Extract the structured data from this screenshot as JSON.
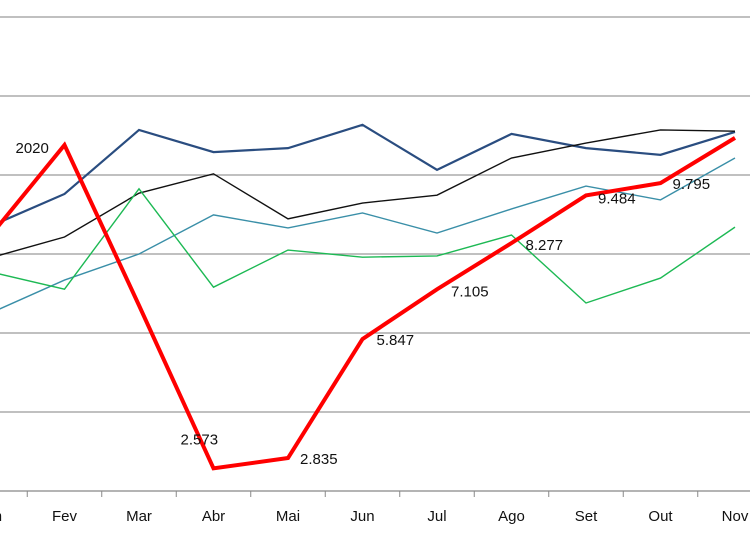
{
  "chart_data": {
    "type": "line",
    "categories": [
      "Jan",
      "Fev",
      "Mar",
      "Abr",
      "Mai",
      "Jun",
      "Jul",
      "Ago",
      "Set",
      "Out",
      "Nov"
    ],
    "ylim": [
      2,
      14
    ],
    "yticks": [
      2,
      4,
      6,
      8,
      10,
      12,
      14
    ],
    "grid": true,
    "series": [
      {
        "name": "series-dark-blue",
        "color": "#2a4d80",
        "width": 2.2,
        "values": [
          8.7,
          9.52,
          11.14,
          10.58,
          10.68,
          11.27,
          10.13,
          11.04,
          10.68,
          10.51,
          11.09
        ]
      },
      {
        "name": "series-black",
        "color": "#111111",
        "width": 1.4,
        "values": [
          7.9,
          8.43,
          9.54,
          10.03,
          8.89,
          9.29,
          9.49,
          10.43,
          10.81,
          11.14,
          11.11
        ]
      },
      {
        "name": "series-teal",
        "color": "#3a8fa8",
        "width": 1.4,
        "values": [
          6.5,
          7.34,
          8.0,
          8.99,
          8.66,
          9.04,
          8.53,
          9.14,
          9.72,
          9.37,
          10.43
        ]
      },
      {
        "name": "series-green",
        "color": "#1db954",
        "width": 1.4,
        "values": [
          7.55,
          7.11,
          9.65,
          7.16,
          8.1,
          7.92,
          7.95,
          8.48,
          6.76,
          7.39,
          8.68
        ]
      },
      {
        "name": "2020",
        "color": "#ff0000",
        "width": 4,
        "values": [
          8.45,
          10.76,
          null,
          2.573,
          2.835,
          5.847,
          7.105,
          8.277,
          9.484,
          9.795,
          10.94
        ],
        "label": "2020",
        "data_labels": [
          "",
          "",
          "",
          "2.573",
          "2.835",
          "5.847",
          "7.105",
          "8.277",
          "9.484",
          "9.795",
          ""
        ]
      }
    ],
    "interpolate_mar_2020": 6.7
  }
}
